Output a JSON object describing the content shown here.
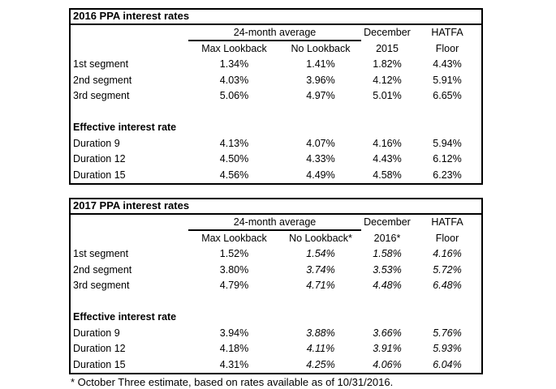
{
  "page": {
    "background_color": "#ffffff",
    "text_color": "#000000",
    "border_color": "#000000"
  },
  "footnote": "* October Three estimate, based on rates available as of 10/31/2016.",
  "tables": [
    {
      "title": "2016 PPA interest rates",
      "columns": {
        "group_label": "24-month average",
        "sub1": "Max Lookback",
        "sub2": "No Lookback",
        "col4_top": "December",
        "col4_bottom": "2015",
        "col5_top": "HATFA",
        "col5_bottom": "Floor"
      },
      "italic_value_columns": [],
      "sections": [
        {
          "header": "",
          "rows": [
            {
              "label": "1st segment",
              "values": [
                "1.34%",
                "1.41%",
                "1.82%",
                "4.43%"
              ]
            },
            {
              "label": "2nd segment",
              "values": [
                "4.03%",
                "3.96%",
                "4.12%",
                "5.91%"
              ]
            },
            {
              "label": "3rd segment",
              "values": [
                "5.06%",
                "4.97%",
                "5.01%",
                "6.65%"
              ]
            }
          ]
        },
        {
          "header": "Effective interest rate",
          "rows": [
            {
              "label": "Duration 9",
              "values": [
                "4.13%",
                "4.07%",
                "4.16%",
                "5.94%"
              ]
            },
            {
              "label": "Duration 12",
              "values": [
                "4.50%",
                "4.33%",
                "4.43%",
                "6.12%"
              ]
            },
            {
              "label": "Duration 15",
              "values": [
                "4.56%",
                "4.49%",
                "4.58%",
                "6.23%"
              ]
            }
          ]
        }
      ]
    },
    {
      "title": "2017 PPA interest rates",
      "columns": {
        "group_label": "24-month average",
        "sub1": "Max Lookback",
        "sub2": "No Lookback*",
        "col4_top": "December",
        "col4_bottom": "2016*",
        "col5_top": "HATFA",
        "col5_bottom": "Floor"
      },
      "italic_value_columns": [
        1,
        2,
        3
      ],
      "sections": [
        {
          "header": "",
          "rows": [
            {
              "label": "1st segment",
              "values": [
                "1.52%",
                "1.54%",
                "1.58%",
                "4.16%"
              ]
            },
            {
              "label": "2nd segment",
              "values": [
                "3.80%",
                "3.74%",
                "3.53%",
                "5.72%"
              ]
            },
            {
              "label": "3rd segment",
              "values": [
                "4.79%",
                "4.71%",
                "4.48%",
                "6.48%"
              ]
            }
          ]
        },
        {
          "header": "Effective interest rate",
          "rows": [
            {
              "label": "Duration 9",
              "values": [
                "3.94%",
                "3.88%",
                "3.66%",
                "5.76%"
              ]
            },
            {
              "label": "Duration 12",
              "values": [
                "4.18%",
                "4.11%",
                "3.91%",
                "5.93%"
              ]
            },
            {
              "label": "Duration 15",
              "values": [
                "4.31%",
                "4.25%",
                "4.06%",
                "6.04%"
              ]
            }
          ]
        }
      ]
    }
  ]
}
